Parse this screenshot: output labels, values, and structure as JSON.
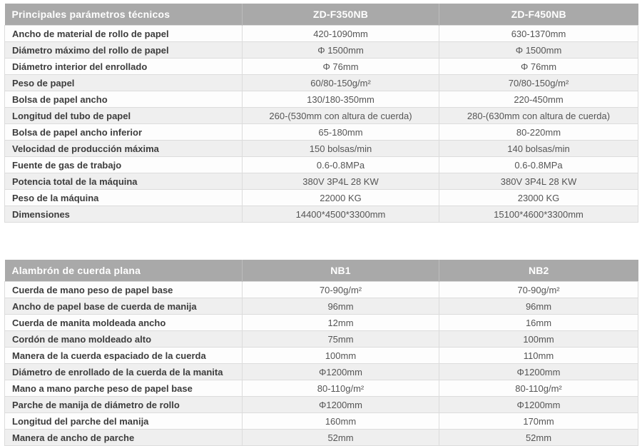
{
  "colors": {
    "header_bg": "#a9a9a9",
    "header_text": "#ffffff",
    "stripe_bg": "#efefef",
    "border": "#dcdcdc",
    "label_text": "#3d3d3d",
    "value_text": "#555555"
  },
  "tables": [
    {
      "header": {
        "title": "Principales parámetros técnicos",
        "col1": "ZD-F350NB",
        "col2": "ZD-F450NB"
      },
      "rows": [
        {
          "label": "Ancho de material de rollo de papel",
          "col1": "420-1090mm",
          "col2": "630-1370mm"
        },
        {
          "label": "Diámetro máximo del rollo de papel",
          "col1": "Φ 1500mm",
          "col2": "Φ 1500mm"
        },
        {
          "label": "Diámetro interior del enrollado",
          "col1": "Φ 76mm",
          "col2": "Φ 76mm"
        },
        {
          "label": "Peso de papel",
          "col1": "60/80-150g/m²",
          "col2": "70/80-150g/m²"
        },
        {
          "label": "Bolsa de papel ancho",
          "col1": "130/180-350mm",
          "col2": "220-450mm"
        },
        {
          "label": "Longitud del tubo de papel",
          "col1": "260-(530mm con altura de cuerda)",
          "col2": "280-(630mm con altura de cuerda)"
        },
        {
          "label": "Bolsa de papel ancho inferior",
          "col1": "65-180mm",
          "col2": "80-220mm"
        },
        {
          "label": "Velocidad de producción máxima",
          "col1": "150 bolsas/min",
          "col2": "140 bolsas/min"
        },
        {
          "label": "Fuente de gas de trabajo",
          "col1": "0.6-0.8MPa",
          "col2": "0.6-0.8MPa"
        },
        {
          "label": "Potencia total de la máquina",
          "col1": "380V 3P4L 28 KW",
          "col2": "380V 3P4L 28 KW"
        },
        {
          "label": "Peso de la máquina",
          "col1": "22000 KG",
          "col2": "23000 KG"
        },
        {
          "label": "Dimensiones",
          "col1": "14400*4500*3300mm",
          "col2": "15100*4600*3300mm"
        }
      ]
    },
    {
      "header": {
        "title": "Alambrón de cuerda plana",
        "col1": "NB1",
        "col2": "NB2"
      },
      "rows": [
        {
          "label": "Cuerda de mano peso de papel base",
          "col1": "70-90g/m²",
          "col2": "70-90g/m²"
        },
        {
          "label": "Ancho de papel base de cuerda de manija",
          "col1": "96mm",
          "col2": "96mm"
        },
        {
          "label": "Cuerda de manita moldeada ancho",
          "col1": "12mm",
          "col2": "16mm"
        },
        {
          "label": "Cordón de mano moldeado alto",
          "col1": "75mm",
          "col2": "100mm"
        },
        {
          "label": "Manera de la cuerda espaciado de la cuerda",
          "col1": "100mm",
          "col2": "110mm"
        },
        {
          "label": "Diámetro de enrollado de la cuerda de la manita",
          "col1": "Φ1200mm",
          "col2": "Φ1200mm"
        },
        {
          "label": "Mano a mano parche peso de papel base",
          "col1": "80-110g/m²",
          "col2": "80-110g/m²"
        },
        {
          "label": "Parche de manija de diámetro de rollo",
          "col1": "Φ1200mm",
          "col2": "Φ1200mm"
        },
        {
          "label": "Longitud del parche del manija",
          "col1": "160mm",
          "col2": "170mm"
        },
        {
          "label": "Manera de ancho de parche",
          "col1": "52mm",
          "col2": "52mm"
        }
      ]
    }
  ]
}
